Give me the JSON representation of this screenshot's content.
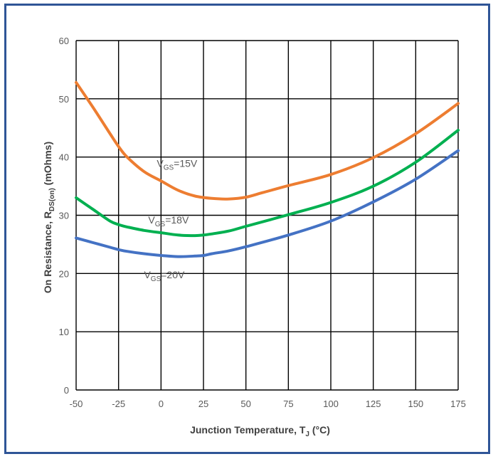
{
  "chart_data": {
    "type": "line",
    "title": "",
    "xlabel": {
      "main": "Junction Temperature, T",
      "sub": "J",
      "tail": " (°C)"
    },
    "ylabel": {
      "main": "On Resistance, R",
      "sub": "DS(on)",
      "tail": " (mOhms)"
    },
    "xlim": [
      -50,
      175
    ],
    "ylim": [
      0,
      60
    ],
    "xticks": [
      -50,
      -25,
      0,
      25,
      50,
      75,
      100,
      125,
      150,
      175
    ],
    "yticks": [
      0,
      10,
      20,
      30,
      40,
      50,
      60
    ],
    "grid": true,
    "series": [
      {
        "name": {
          "main": "V",
          "sub": "GS",
          "tail": "=15V"
        },
        "color": "#ed7d31",
        "x": [
          -50,
          -40,
          -30,
          -25,
          -20,
          -10,
          0,
          10,
          20,
          30,
          40,
          50,
          60,
          75,
          100,
          125,
          150,
          175
        ],
        "y": [
          52.8,
          48.5,
          44.0,
          41.8,
          40.0,
          37.5,
          35.9,
          34.3,
          33.3,
          32.9,
          32.8,
          33.1,
          33.9,
          35.1,
          37.0,
          39.9,
          44.0,
          49.2
        ]
      },
      {
        "name": {
          "main": "V",
          "sub": "GS",
          "tail": "=18V"
        },
        "color": "#00b050",
        "x": [
          -50,
          -40,
          -30,
          -25,
          -20,
          -10,
          0,
          10,
          20,
          25,
          30,
          40,
          50,
          75,
          100,
          125,
          150,
          175
        ],
        "y": [
          33.0,
          31.0,
          29.0,
          28.4,
          28.0,
          27.4,
          27.0,
          26.6,
          26.5,
          26.6,
          26.8,
          27.3,
          28.1,
          30.1,
          32.2,
          35.0,
          39.1,
          44.6
        ]
      },
      {
        "name": {
          "main": "V",
          "sub": "GS",
          "tail": "=20V"
        },
        "color": "#4472c4",
        "x": [
          -50,
          -40,
          -30,
          -25,
          -20,
          -10,
          0,
          10,
          20,
          25,
          30,
          40,
          50,
          75,
          100,
          125,
          150,
          175
        ],
        "y": [
          26.1,
          25.3,
          24.5,
          24.1,
          23.8,
          23.4,
          23.1,
          22.9,
          23.0,
          23.1,
          23.4,
          23.9,
          24.6,
          26.6,
          29.0,
          32.3,
          36.2,
          41.1
        ]
      }
    ]
  }
}
